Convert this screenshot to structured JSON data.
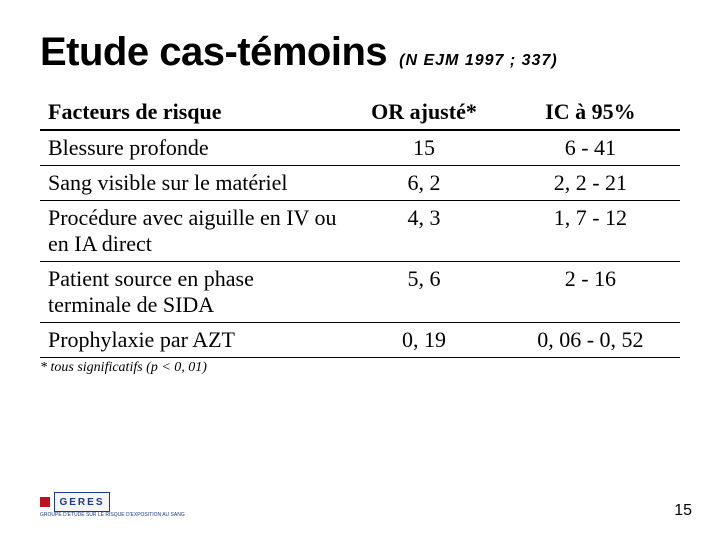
{
  "title": "Etude cas-témoins",
  "citation": "(N EJM 1997 ; 337)",
  "table": {
    "headers": {
      "factor": "Facteurs de risque",
      "or": "OR ajusté*",
      "ic": "IC à 95%"
    },
    "rows": [
      {
        "factor": "Blessure profonde",
        "or": "15",
        "ic": "6 - 41"
      },
      {
        "factor": "Sang visible sur le matériel",
        "or": "6, 2",
        "ic": "2, 2 - 21"
      },
      {
        "factor": "Procédure avec aiguille en IV ou en IA direct",
        "or": "4, 3",
        "ic": "1, 7 - 12"
      },
      {
        "factor": "Patient source en phase terminale de SIDA",
        "or": "5, 6",
        "ic": "2 - 16"
      },
      {
        "factor": "Prophylaxie par AZT",
        "or": "0, 19",
        "ic": "0, 06 - 0, 52"
      }
    ]
  },
  "footnote": "* tous significatifs (p < 0, 01)",
  "logo": {
    "text": "GERES",
    "sub": "GROUPE D'ETUDE SUR LE RISQUE D'EXPOSITION AU SANG"
  },
  "pagenum": "15",
  "style": {
    "title_fontsize": 40,
    "citation_fontsize": 16,
    "table_fontsize": 22,
    "footnote_fontsize": 14,
    "pagenum_fontsize": 16,
    "border_color": "#000000",
    "text_color": "#000000",
    "logo_border": "#1a3a8a",
    "logo_accent": "#c01020",
    "background": "#ffffff"
  }
}
